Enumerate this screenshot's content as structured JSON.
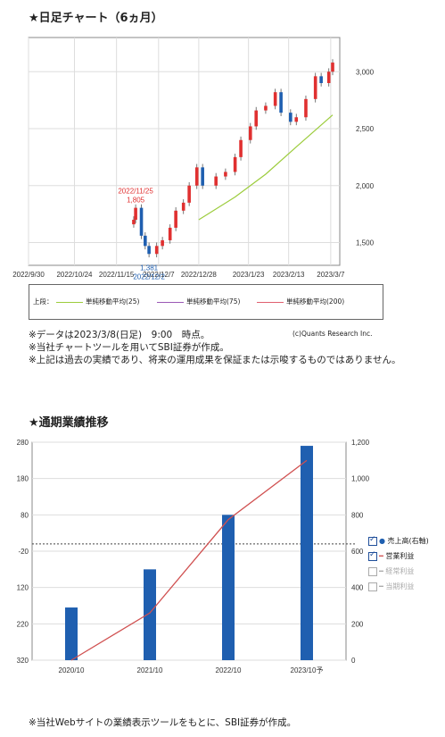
{
  "top_chart": {
    "title": "★日足チャート（6ヵ月）",
    "x_ticks": [
      "2022/9/30",
      "2022/10/24",
      "2022/11/15",
      "2022/12/7",
      "2022/12/28",
      "2023/1/23",
      "2023/2/13",
      "2023/3/7"
    ],
    "y_ticks": [
      "3,000",
      "2,500",
      "2,000",
      "1,500"
    ],
    "annotation_high_date": "2022/11/25",
    "annotation_high_value": "1,805",
    "annotation_low_value": "1,381",
    "annotation_low_date": "2022/12/2",
    "legend_prefix": "上段：",
    "legend": [
      {
        "label": "単純移動平均(25)",
        "color": "#9ccc3c"
      },
      {
        "label": "単純移動平均(75)",
        "color": "#9b59b6"
      },
      {
        "label": "単純移動平均(200)",
        "color": "#e06070"
      }
    ],
    "credit": "(c)Quants Research Inc."
  },
  "notes_top": [
    "※データは2023/3/8(日足)　9:00　時点。",
    "※当社チャートツールを用いてSBI証券が作成。",
    "※上記は過去の実績であり、将来の運用成果を保証または示唆するものではありません。"
  ],
  "bottom_chart": {
    "title": "★通期業績推移",
    "categories": [
      "2020/10",
      "2021/10",
      "2022/10",
      "2023/10予"
    ],
    "left_ticks": [
      "280",
      "180",
      "80",
      "-20",
      "120",
      "220",
      "320"
    ],
    "right_ticks": [
      "1,200",
      "1,000",
      "800",
      "600",
      "400",
      "200",
      "0"
    ],
    "legend": [
      {
        "label": "売上高(右軸)",
        "checked": true,
        "marker": "dot",
        "color": "#1f5fb0"
      },
      {
        "label": "営業利益",
        "checked": true,
        "marker": "line",
        "color": "#d05050"
      },
      {
        "label": "経常利益",
        "checked": false,
        "marker": "line",
        "color": "#bbbbbb"
      },
      {
        "label": "当期利益",
        "checked": false,
        "marker": "line",
        "color": "#bbbbbb"
      }
    ]
  },
  "chart_data": [
    {
      "type": "line",
      "title": "★日足チャート（6ヵ月）",
      "x_ticks": [
        "2022/9/30",
        "2022/10/24",
        "2022/11/15",
        "2022/12/7",
        "2022/12/28",
        "2023/1/23",
        "2023/2/13",
        "2023/3/7"
      ],
      "ylim": [
        1300,
        3300
      ],
      "series": [
        {
          "name": "price",
          "dates": [
            "2022/11/24",
            "2022/11/25",
            "2022/11/28",
            "2022/11/30",
            "2022/12/2",
            "2022/12/6",
            "2022/12/9",
            "2022/12/13",
            "2022/12/16",
            "2022/12/20",
            "2022/12/23",
            "2022/12/27",
            "2022/12/30",
            "2023/1/6",
            "2023/1/11",
            "2023/1/16",
            "2023/1/19",
            "2023/1/24",
            "2023/1/27",
            "2023/2/1",
            "2023/2/6",
            "2023/2/9",
            "2023/2/14",
            "2023/2/17",
            "2023/2/22",
            "2023/2/27",
            "2023/3/2",
            "2023/3/6",
            "2023/3/8"
          ],
          "values": [
            1700,
            1805,
            1560,
            1470,
            1400,
            1470,
            1520,
            1630,
            1780,
            1850,
            2000,
            2160,
            2000,
            2080,
            2120,
            2250,
            2400,
            2520,
            2660,
            2700,
            2820,
            2640,
            2560,
            2600,
            2760,
            2960,
            2900,
            3000,
            3080
          ]
        },
        {
          "name": "単純移動平均(25)",
          "dates": [
            "2022/12/28",
            "2023/1/16",
            "2023/2/1",
            "2023/2/17",
            "2023/3/8"
          ],
          "values": [
            1700,
            1900,
            2100,
            2340,
            2620
          ]
        }
      ]
    },
    {
      "type": "bar",
      "title": "★通期業績推移",
      "categories": [
        "2020/10",
        "2021/10",
        "2022/10",
        "2023/10予"
      ],
      "series": [
        {
          "name": "売上高(右軸)",
          "axis": "right",
          "values": [
            290,
            500,
            800,
            1180
          ]
        },
        {
          "name": "営業利益",
          "axis": "left",
          "values": [
            -320,
            -190,
            67,
            230
          ]
        }
      ],
      "right_ylim": [
        0,
        1200
      ],
      "left_ylim": [
        -320,
        280
      ]
    }
  ],
  "notes_bottom": [
    "※当社Webサイトの業績表示ツールをもとに、SBI証券が作成。"
  ]
}
